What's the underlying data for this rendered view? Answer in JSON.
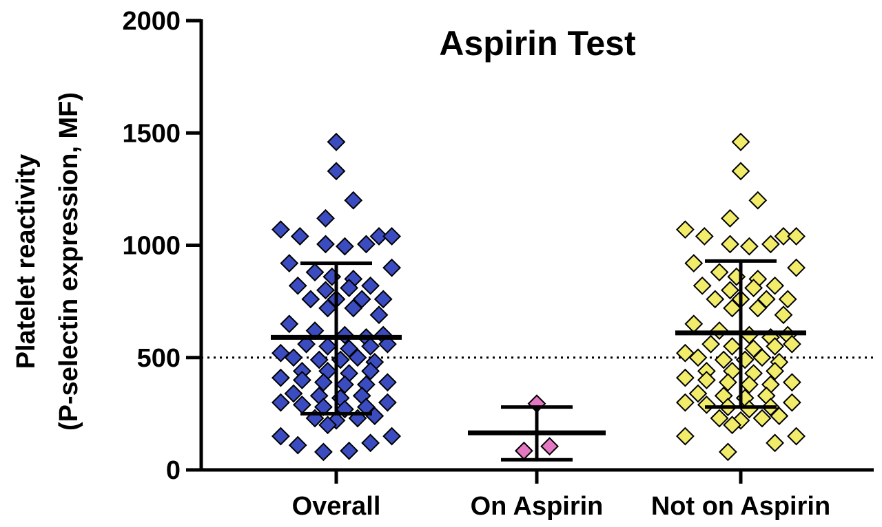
{
  "chart_data": {
    "type": "scatter",
    "title": "Aspirin Test",
    "ylabel_line1": "Platelet reactivity",
    "ylabel_line2": "(P-selectin expression, MF)",
    "xlabel": "",
    "ylim": [
      0,
      2000
    ],
    "yticks": [
      "0",
      "500",
      "1000",
      "1500",
      "2000"
    ],
    "reference_line": 500,
    "categories": [
      "Overall",
      "On Aspirin",
      "Not on Aspirin"
    ],
    "colors": {
      "Overall": "#3b4cc0",
      "On Aspirin": "#e377c2",
      "Not on Aspirin": "#f2ec6b",
      "marker_stroke": "#000000"
    },
    "series": [
      {
        "category": "Overall",
        "mean": 590,
        "sd_low": 250,
        "sd_high": 920,
        "points": [
          [
            0.0,
            1460
          ],
          [
            0.0,
            1330
          ],
          [
            0.08,
            1200
          ],
          [
            -0.05,
            1120
          ],
          [
            -0.26,
            1070
          ],
          [
            -0.17,
            1040
          ],
          [
            0.2,
            1040
          ],
          [
            0.26,
            1040
          ],
          [
            -0.05,
            1005
          ],
          [
            0.04,
            995
          ],
          [
            0.14,
            1005
          ],
          [
            -0.22,
            920
          ],
          [
            0.26,
            900
          ],
          [
            -0.1,
            880
          ],
          [
            -0.02,
            860
          ],
          [
            0.08,
            850
          ],
          [
            -0.18,
            820
          ],
          [
            -0.05,
            800
          ],
          [
            0.06,
            810
          ],
          [
            0.16,
            820
          ],
          [
            -0.12,
            760
          ],
          [
            0.0,
            760
          ],
          [
            0.12,
            760
          ],
          [
            0.22,
            760
          ],
          [
            -0.04,
            720
          ],
          [
            0.08,
            720
          ],
          [
            0.2,
            690
          ],
          [
            -0.22,
            650
          ],
          [
            -0.1,
            620
          ],
          [
            0.04,
            600
          ],
          [
            0.14,
            590
          ],
          [
            0.22,
            600
          ],
          [
            -0.14,
            560
          ],
          [
            -0.04,
            550
          ],
          [
            0.06,
            540
          ],
          [
            0.16,
            550
          ],
          [
            0.24,
            560
          ],
          [
            -0.26,
            520
          ],
          [
            -0.2,
            500
          ],
          [
            -0.08,
            490
          ],
          [
            0.02,
            490
          ],
          [
            0.1,
            500
          ],
          [
            0.18,
            480
          ],
          [
            -0.16,
            440
          ],
          [
            -0.04,
            440
          ],
          [
            0.06,
            430
          ],
          [
            0.16,
            440
          ],
          [
            -0.26,
            410
          ],
          [
            -0.16,
            400
          ],
          [
            -0.06,
            390
          ],
          [
            0.04,
            380
          ],
          [
            0.14,
            380
          ],
          [
            0.24,
            390
          ],
          [
            -0.2,
            340
          ],
          [
            -0.08,
            330
          ],
          [
            0.02,
            320
          ],
          [
            0.12,
            330
          ],
          [
            -0.26,
            300
          ],
          [
            -0.16,
            290
          ],
          [
            -0.06,
            280
          ],
          [
            0.04,
            270
          ],
          [
            0.14,
            280
          ],
          [
            0.24,
            300
          ],
          [
            -0.1,
            230
          ],
          [
            0.0,
            220
          ],
          [
            0.1,
            230
          ],
          [
            0.18,
            240
          ],
          [
            -0.04,
            200
          ],
          [
            -0.26,
            150
          ],
          [
            0.26,
            150
          ],
          [
            0.16,
            120
          ],
          [
            -0.18,
            110
          ],
          [
            -0.06,
            80
          ],
          [
            0.06,
            85
          ]
        ]
      },
      {
        "category": "On Aspirin",
        "mean": 165,
        "sd_low": 45,
        "sd_high": 280,
        "points": [
          [
            0.0,
            295
          ],
          [
            -0.06,
            85
          ],
          [
            0.06,
            105
          ]
        ]
      },
      {
        "category": "Not on Aspirin",
        "mean": 610,
        "sd_low": 280,
        "sd_high": 930,
        "points": [
          [
            0.0,
            1460
          ],
          [
            0.0,
            1330
          ],
          [
            0.08,
            1200
          ],
          [
            -0.05,
            1120
          ],
          [
            -0.26,
            1070
          ],
          [
            -0.17,
            1040
          ],
          [
            0.2,
            1040
          ],
          [
            0.26,
            1040
          ],
          [
            -0.05,
            1005
          ],
          [
            0.04,
            995
          ],
          [
            0.14,
            1005
          ],
          [
            -0.22,
            920
          ],
          [
            0.26,
            900
          ],
          [
            -0.1,
            880
          ],
          [
            -0.02,
            860
          ],
          [
            0.08,
            850
          ],
          [
            -0.18,
            820
          ],
          [
            -0.05,
            800
          ],
          [
            0.06,
            810
          ],
          [
            0.16,
            820
          ],
          [
            -0.12,
            760
          ],
          [
            0.0,
            760
          ],
          [
            0.12,
            760
          ],
          [
            0.22,
            760
          ],
          [
            -0.04,
            720
          ],
          [
            0.08,
            720
          ],
          [
            0.2,
            690
          ],
          [
            -0.22,
            650
          ],
          [
            -0.1,
            620
          ],
          [
            0.04,
            600
          ],
          [
            0.14,
            590
          ],
          [
            0.22,
            600
          ],
          [
            -0.14,
            560
          ],
          [
            -0.04,
            550
          ],
          [
            0.06,
            540
          ],
          [
            0.16,
            550
          ],
          [
            0.24,
            560
          ],
          [
            -0.26,
            520
          ],
          [
            -0.2,
            500
          ],
          [
            -0.08,
            490
          ],
          [
            0.02,
            490
          ],
          [
            0.1,
            500
          ],
          [
            0.18,
            480
          ],
          [
            -0.16,
            440
          ],
          [
            -0.04,
            440
          ],
          [
            0.06,
            430
          ],
          [
            0.16,
            440
          ],
          [
            -0.26,
            410
          ],
          [
            -0.16,
            400
          ],
          [
            -0.06,
            390
          ],
          [
            0.04,
            380
          ],
          [
            0.14,
            380
          ],
          [
            0.24,
            390
          ],
          [
            -0.2,
            340
          ],
          [
            -0.08,
            330
          ],
          [
            0.02,
            320
          ],
          [
            0.12,
            330
          ],
          [
            -0.26,
            300
          ],
          [
            -0.16,
            290
          ],
          [
            -0.06,
            280
          ],
          [
            0.04,
            270
          ],
          [
            0.14,
            280
          ],
          [
            0.24,
            300
          ],
          [
            -0.1,
            230
          ],
          [
            0.0,
            220
          ],
          [
            0.1,
            230
          ],
          [
            0.18,
            240
          ],
          [
            -0.04,
            200
          ],
          [
            -0.26,
            150
          ],
          [
            0.26,
            150
          ],
          [
            0.16,
            120
          ],
          [
            -0.06,
            80
          ]
        ]
      }
    ]
  }
}
